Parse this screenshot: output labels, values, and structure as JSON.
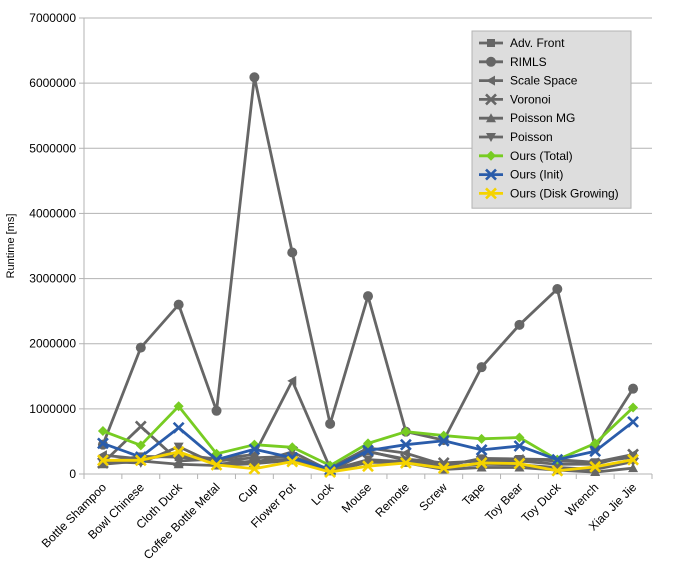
{
  "chart_data": {
    "type": "line",
    "title": "",
    "xlabel": "",
    "ylabel": "Runtime [ms]",
    "ylim": [
      0,
      7000000
    ],
    "yticks": [
      0,
      1000000,
      2000000,
      3000000,
      4000000,
      5000000,
      6000000,
      7000000
    ],
    "ytick_labels": [
      "0",
      "1000000",
      "2000000",
      "3000000",
      "4000000",
      "5000000",
      "6000000",
      "7000000"
    ],
    "grid": "horizontal",
    "legend_position": "top-right",
    "categories": [
      "Bottle Shampoo",
      "Bowl Chinese",
      "Cloth Duck",
      "Coffee Bottle Metal",
      "Cup",
      "Flower Pot",
      "Lock",
      "Mouse",
      "Remote",
      "Screw",
      "Tape",
      "Toy Bear",
      "Toy Duck",
      "Wrench",
      "Xiao Jie Jie"
    ],
    "series": [
      {
        "name": "Adv. Front",
        "marker": "square",
        "color": "#666666",
        "values": [
          180000,
          270000,
          260000,
          200000,
          250000,
          270000,
          70000,
          350000,
          210000,
          120000,
          240000,
          230000,
          200000,
          180000,
          260000
        ]
      },
      {
        "name": "RIMLS",
        "marker": "circle",
        "color": "#666666",
        "values": [
          450000,
          1940000,
          2600000,
          970000,
          6090000,
          3400000,
          770000,
          2730000,
          650000,
          520000,
          1640000,
          2290000,
          2840000,
          400000,
          1310000
        ]
      },
      {
        "name": "Scale Space",
        "marker": "triangle-left",
        "color": "#666666",
        "values": [
          290000,
          230000,
          300000,
          230000,
          300000,
          1430000,
          90000,
          400000,
          320000,
          140000,
          220000,
          230000,
          220000,
          180000,
          300000
        ]
      },
      {
        "name": "Voronoi",
        "marker": "x",
        "color": "#666666",
        "values": [
          170000,
          730000,
          200000,
          230000,
          170000,
          340000,
          50000,
          340000,
          230000,
          170000,
          200000,
          200000,
          150000,
          150000,
          300000
        ]
      },
      {
        "name": "Poisson MG",
        "marker": "triangle-up",
        "color": "#666666",
        "values": [
          150000,
          200000,
          150000,
          130000,
          160000,
          210000,
          40000,
          180000,
          170000,
          70000,
          100000,
          100000,
          60000,
          30000,
          90000
        ]
      },
      {
        "name": "Poisson",
        "marker": "triangle-down",
        "color": "#666666",
        "values": [
          190000,
          170000,
          420000,
          150000,
          200000,
          230000,
          60000,
          220000,
          190000,
          110000,
          150000,
          140000,
          100000,
          70000,
          190000
        ]
      },
      {
        "name": "Ours (Total)",
        "marker": "diamond",
        "color": "#77cc22",
        "values": [
          660000,
          440000,
          1040000,
          310000,
          450000,
          410000,
          130000,
          470000,
          650000,
          590000,
          540000,
          560000,
          220000,
          470000,
          1020000
        ]
      },
      {
        "name": "Ours (Init)",
        "marker": "x",
        "color": "#2a5caa",
        "values": [
          470000,
          260000,
          710000,
          220000,
          380000,
          250000,
          70000,
          360000,
          450000,
          510000,
          370000,
          430000,
          220000,
          350000,
          800000
        ]
      },
      {
        "name": "Ours (Disk Growing)",
        "marker": "x",
        "color": "#f5d300",
        "values": [
          210000,
          210000,
          340000,
          140000,
          80000,
          190000,
          30000,
          120000,
          170000,
          90000,
          170000,
          160000,
          50000,
          110000,
          220000
        ]
      }
    ]
  }
}
